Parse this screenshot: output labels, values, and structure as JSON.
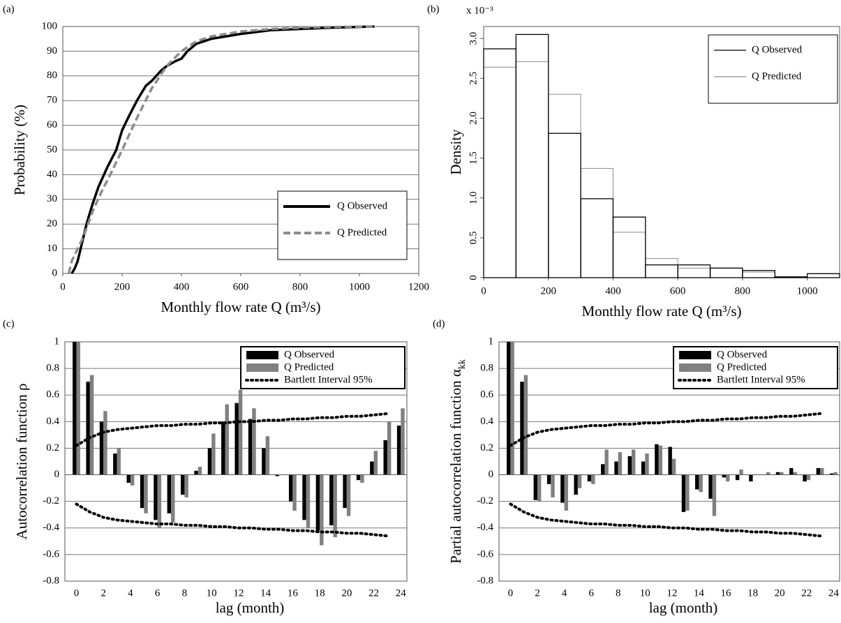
{
  "chart_data": [
    {
      "type": "line",
      "label": "(a)",
      "x_label": "Monthly flow rate Q (m³/s)",
      "y_label": "Probability (%)",
      "xlim": [
        0,
        1200
      ],
      "xticks": [
        0,
        200,
        400,
        600,
        800,
        1000,
        1200
      ],
      "ylim": [
        0,
        100
      ],
      "yticks": [
        0,
        10,
        20,
        30,
        40,
        50,
        60,
        70,
        80,
        90,
        100
      ],
      "grid": true,
      "legend": "lower right",
      "series": [
        {
          "name": "Q Observed",
          "color": "#000000",
          "line_style": "solid",
          "x": [
            30,
            40,
            50,
            60,
            70,
            80,
            100,
            120,
            150,
            180,
            200,
            220,
            250,
            280,
            300,
            330,
            350,
            380,
            400,
            420,
            450,
            500,
            600,
            700,
            800,
            900,
            1050
          ],
          "values": [
            0,
            2,
            5,
            10,
            15,
            20,
            28,
            35,
            43,
            50,
            58,
            63,
            70,
            76,
            78,
            82,
            84,
            86,
            87,
            90,
            93,
            95,
            97,
            98.5,
            99,
            99.5,
            100
          ]
        },
        {
          "name": "Q Predicted",
          "color": "#8c8c8c",
          "line_style": "dashed",
          "x": [
            20,
            30,
            50,
            70,
            100,
            130,
            160,
            200,
            250,
            300,
            350,
            400,
            450,
            500,
            600,
            700,
            800,
            900,
            1050
          ],
          "values": [
            0,
            5,
            10,
            15,
            25,
            33,
            40,
            50,
            63,
            75,
            84,
            90,
            94,
            96,
            98,
            99,
            99.5,
            99.8,
            100
          ]
        }
      ]
    },
    {
      "type": "histogram",
      "label": "(b)",
      "x_label": "Monthly flow rate Q (m³/s)",
      "y_label": "Density",
      "y_multiplier": "x 10⁻³",
      "xlim": [
        0,
        1100
      ],
      "xticks": [
        0,
        200,
        400,
        600,
        800,
        1000
      ],
      "ylim": [
        0,
        3.15
      ],
      "yticks": [
        0,
        0.5,
        {
          "value": 1,
          "label": "1.0"
        },
        1.5,
        {
          "value": 2,
          "label": "2.0"
        },
        2.5,
        {
          "value": 3,
          "label": "3.0"
        }
      ],
      "grid": false,
      "legend": "upper right",
      "bins": [
        0,
        100,
        200,
        300,
        400,
        500,
        600,
        700,
        800,
        900,
        1000,
        1100
      ],
      "series": [
        {
          "name": "Q Observed",
          "color": "#000000",
          "values": [
            2.87,
            3.05,
            1.81,
            0.99,
            0.76,
            0.16,
            0.16,
            0.12,
            0.09,
            0.01,
            0.05
          ]
        },
        {
          "name": "Q Predicted",
          "color": "#8c8c8c",
          "values": [
            2.64,
            2.71,
            2.3,
            1.37,
            0.57,
            0.24,
            0.12,
            0.12,
            0.07,
            0.01,
            0.05
          ]
        }
      ]
    },
    {
      "type": "bar",
      "label": "(c)",
      "x_label": "lag (month)",
      "y_label": "Autocorrelation function ρ",
      "categories": [
        "0",
        null,
        "2",
        null,
        "4",
        null,
        "6",
        null,
        "8",
        null,
        "10",
        null,
        "12",
        null,
        "14",
        null,
        "16",
        null,
        "18",
        null,
        "20",
        null,
        "22",
        null,
        "24"
      ],
      "ylim": [
        -0.8,
        1
      ],
      "yticks": [
        -0.8,
        -0.6,
        -0.4,
        -0.2,
        0,
        0.2,
        0.4,
        0.6,
        0.8,
        1
      ],
      "grid": true,
      "legend": "upper right",
      "series": [
        {
          "name": "Q Observed",
          "color": "#000000",
          "values": [
            1,
            0.7,
            0.4,
            0.16,
            -0.06,
            -0.25,
            -0.34,
            -0.29,
            -0.15,
            0.03,
            0.2,
            0.4,
            0.54,
            0.42,
            0.2,
            -0.01,
            -0.2,
            -0.34,
            -0.42,
            -0.38,
            -0.25,
            -0.04,
            0.1,
            0.26,
            0.37
          ]
        },
        {
          "name": "Q Predicted",
          "color": "#808080",
          "values": [
            1,
            0.75,
            0.48,
            0.2,
            -0.08,
            -0.29,
            -0.4,
            -0.36,
            -0.17,
            0.06,
            0.31,
            0.53,
            0.64,
            0.5,
            0.29,
            0,
            -0.27,
            -0.4,
            -0.53,
            -0.47,
            -0.31,
            -0.06,
            0.18,
            0.4,
            0.5
          ]
        },
        {
          "name": "Bartlett Interval 95%",
          "color": "#000000",
          "line_style": "dotted",
          "values": [
            0.22,
            0.28,
            0.32,
            0.34,
            0.35,
            0.36,
            0.37,
            0.37,
            0.38,
            0.38,
            0.39,
            0.39,
            0.4,
            0.4,
            0.41,
            0.41,
            0.42,
            0.42,
            0.43,
            0.43,
            0.44,
            0.44,
            0.45,
            0.46,
            null
          ],
          "lower_values": [
            -0.22,
            -0.28,
            -0.32,
            -0.34,
            -0.35,
            -0.36,
            -0.37,
            -0.37,
            -0.38,
            -0.38,
            -0.39,
            -0.39,
            -0.4,
            -0.4,
            -0.41,
            -0.41,
            -0.42,
            -0.42,
            -0.43,
            -0.43,
            -0.44,
            -0.44,
            -0.45,
            -0.46,
            null
          ]
        }
      ]
    },
    {
      "type": "bar",
      "label": "(d)",
      "x_label": "lag (month)",
      "y_label": "Partial autocorrelation function α",
      "y_label_sub": "kk",
      "categories": [
        "0",
        null,
        "2",
        null,
        "4",
        null,
        "6",
        null,
        "8",
        null,
        "10",
        null,
        "12",
        null,
        "14",
        null,
        "16",
        null,
        "18",
        null,
        "20",
        null,
        "22",
        null,
        "24"
      ],
      "ylim": [
        -0.8,
        1
      ],
      "yticks": [
        -0.8,
        -0.6,
        -0.4,
        -0.2,
        0,
        0.2,
        0.4,
        0.6,
        0.8,
        1
      ],
      "grid": true,
      "legend": "upper right",
      "series": [
        {
          "name": "Q Observed",
          "color": "#000000",
          "values": [
            1,
            0.7,
            -0.19,
            -0.07,
            -0.21,
            -0.15,
            -0.05,
            0.08,
            0.1,
            0.14,
            0.1,
            0.23,
            0.21,
            -0.28,
            -0.11,
            -0.18,
            -0.02,
            -0.04,
            -0.05,
            0,
            0.02,
            0.05,
            -0.05,
            0.05,
            0.01
          ]
        },
        {
          "name": "Q Predicted",
          "color": "#808080",
          "values": [
            1,
            0.75,
            -0.2,
            -0.17,
            -0.27,
            -0.1,
            -0.07,
            0.19,
            0.17,
            0.19,
            0.16,
            0.22,
            0.12,
            -0.27,
            -0.13,
            -0.31,
            -0.05,
            0.04,
            0,
            0.02,
            0.02,
            0.02,
            -0.04,
            0.05,
            0.02
          ]
        },
        {
          "name": "Bartlett Interval 95%",
          "color": "#000000",
          "line_style": "dotted",
          "values": [
            0.22,
            0.28,
            0.32,
            0.34,
            0.35,
            0.36,
            0.37,
            0.37,
            0.38,
            0.38,
            0.39,
            0.39,
            0.4,
            0.4,
            0.41,
            0.41,
            0.42,
            0.42,
            0.43,
            0.43,
            0.44,
            0.44,
            0.45,
            0.46,
            null
          ],
          "lower_values": [
            -0.22,
            -0.28,
            -0.32,
            -0.34,
            -0.35,
            -0.36,
            -0.37,
            -0.37,
            -0.38,
            -0.38,
            -0.39,
            -0.39,
            -0.4,
            -0.4,
            -0.41,
            -0.41,
            -0.42,
            -0.42,
            -0.43,
            -0.43,
            -0.44,
            -0.44,
            -0.45,
            -0.46,
            null
          ]
        }
      ]
    }
  ]
}
